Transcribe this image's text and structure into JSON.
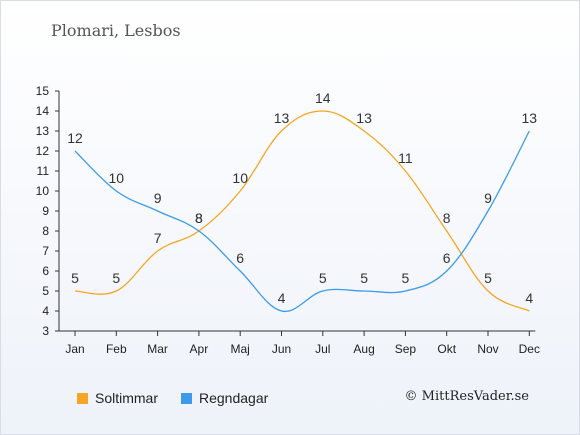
{
  "title": "Plomari, Lesbos",
  "copyright": "© MittResVader.se",
  "chart_data": {
    "type": "line",
    "categories": [
      "Jan",
      "Feb",
      "Mar",
      "Apr",
      "Maj",
      "Jun",
      "Jul",
      "Aug",
      "Sep",
      "Okt",
      "Nov",
      "Dec"
    ],
    "series": [
      {
        "name": "Soltimmar",
        "color": "#f5a623",
        "values": [
          5,
          5,
          7,
          8,
          10,
          13,
          14,
          13,
          11,
          8,
          5,
          4
        ]
      },
      {
        "name": "Regndagar",
        "color": "#3d9be9",
        "values": [
          12,
          10,
          9,
          8,
          6,
          4,
          5,
          5,
          5,
          6,
          9,
          13
        ]
      }
    ],
    "ylim": [
      3,
      15
    ],
    "yticks": [
      3,
      4,
      5,
      6,
      7,
      8,
      9,
      10,
      11,
      12,
      13,
      14,
      15
    ],
    "legend_position": "bottom-left",
    "grid": false
  }
}
